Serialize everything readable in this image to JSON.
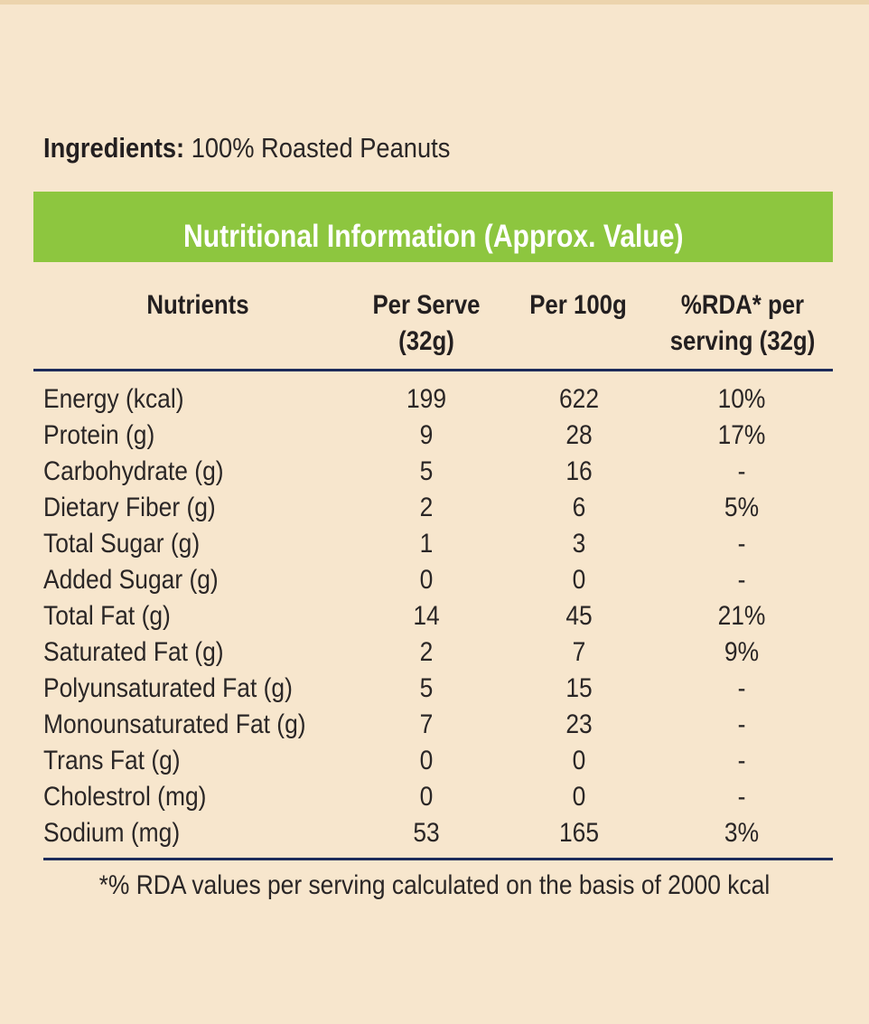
{
  "ingredients": {
    "label": "Ingredients:",
    "value": " 100% Roasted Peanuts"
  },
  "table": {
    "title": "Nutritional Information (Approx. Value)",
    "headers": {
      "nutrients": "Nutrients",
      "per_serve_line1": "Per Serve",
      "per_serve_line2": "(32g)",
      "per_100g": "Per 100g",
      "rda_line1": "%RDA* per",
      "rda_line2": "serving (32g)"
    },
    "rows": [
      {
        "name": "Energy (kcal)",
        "per_serve": "199",
        "per_100g": "622",
        "rda": "10%"
      },
      {
        "name": "Protein (g)",
        "per_serve": "9",
        "per_100g": "28",
        "rda": "17%"
      },
      {
        "name": "Carbohydrate (g)",
        "per_serve": "5",
        "per_100g": "16",
        "rda": "-"
      },
      {
        "name": "Dietary Fiber (g)",
        "per_serve": "2",
        "per_100g": "6",
        "rda": "5%"
      },
      {
        "name": "Total Sugar (g)",
        "per_serve": "1",
        "per_100g": "3",
        "rda": "-"
      },
      {
        "name": "Added Sugar (g)",
        "per_serve": "0",
        "per_100g": "0",
        "rda": "-"
      },
      {
        "name": "Total Fat (g)",
        "per_serve": "14",
        "per_100g": "45",
        "rda": "21%"
      },
      {
        "name": "Saturated Fat (g)",
        "per_serve": "2",
        "per_100g": "7",
        "rda": "9%"
      },
      {
        "name": "Polyunsaturated Fat (g)",
        "per_serve": "5",
        "per_100g": "15",
        "rda": "-"
      },
      {
        "name": "Monounsaturated Fat (g)",
        "per_serve": "7",
        "per_100g": "23",
        "rda": "-"
      },
      {
        "name": "Trans Fat (g)",
        "per_serve": "0",
        "per_100g": "0",
        "rda": "-"
      },
      {
        "name": "Cholestrol (mg)",
        "per_serve": "0",
        "per_100g": "0",
        "rda": "-"
      },
      {
        "name": "Sodium (mg)",
        "per_serve": "53",
        "per_100g": "165",
        "rda": "3%"
      }
    ],
    "footnote": "*% RDA values per serving calculated on the basis of 2000 kcal"
  },
  "colors": {
    "background": "#f7e6cd",
    "banner": "#8dc63f",
    "rule": "#1d2b5a",
    "text": "#231f20"
  }
}
